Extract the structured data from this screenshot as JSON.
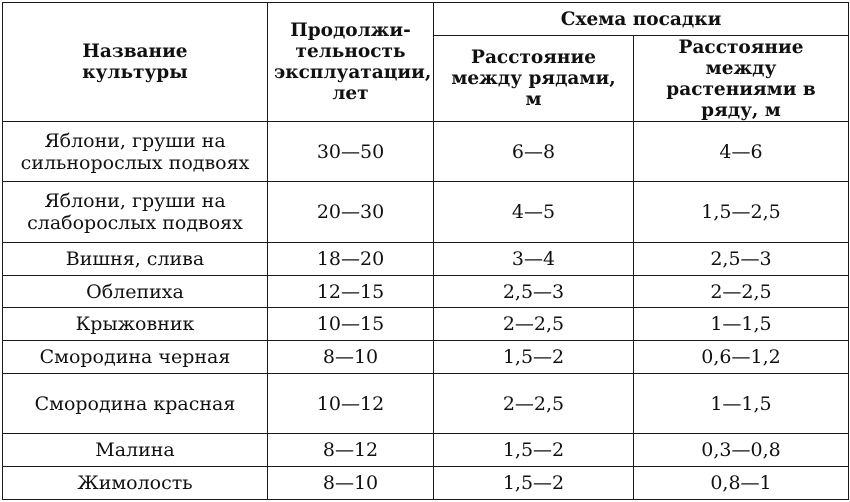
{
  "table": {
    "header": {
      "crop_name": "Название культуры",
      "duration": "Продолжи-тельность эксплуатации, лет",
      "scheme": "Схема посадки",
      "row_spacing": "Расстояние между рядами, м",
      "plant_spacing": "Расстояние между растениями в ряду, м"
    },
    "rows": [
      {
        "name": "Яблони, груши на сильнорослых подвоях",
        "duration": "30—50",
        "row_spacing": "6—8",
        "plant_spacing": "4—6"
      },
      {
        "name": "Яблони, груши на слаборослых подвоях",
        "duration": "20—30",
        "row_spacing": "4—5",
        "plant_spacing": "1,5—2,5"
      },
      {
        "name": "Вишня, слива",
        "duration": "18—20",
        "row_spacing": "3—4",
        "plant_spacing": "2,5—3"
      },
      {
        "name": "Облепиха",
        "duration": "12—15",
        "row_spacing": "2,5—3",
        "plant_spacing": "2—2,5"
      },
      {
        "name": "Крыжовник",
        "duration": "10—15",
        "row_spacing": "2—2,5",
        "plant_spacing": "1—1,5"
      },
      {
        "name": "Смородина черная",
        "duration": "8—10",
        "row_spacing": "1,5—2",
        "plant_spacing": "0,6—1,2"
      },
      {
        "name": "Смородина красная",
        "duration": "10—12",
        "row_spacing": "2—2,5",
        "plant_spacing": "1—1,5"
      },
      {
        "name": "Малина",
        "duration": "8—12",
        "row_spacing": "1,5—2",
        "plant_spacing": "0,3—0,8"
      },
      {
        "name": "Жимолость",
        "duration": "8—10",
        "row_spacing": "1,5—2",
        "plant_spacing": "0,8—1"
      }
    ]
  }
}
